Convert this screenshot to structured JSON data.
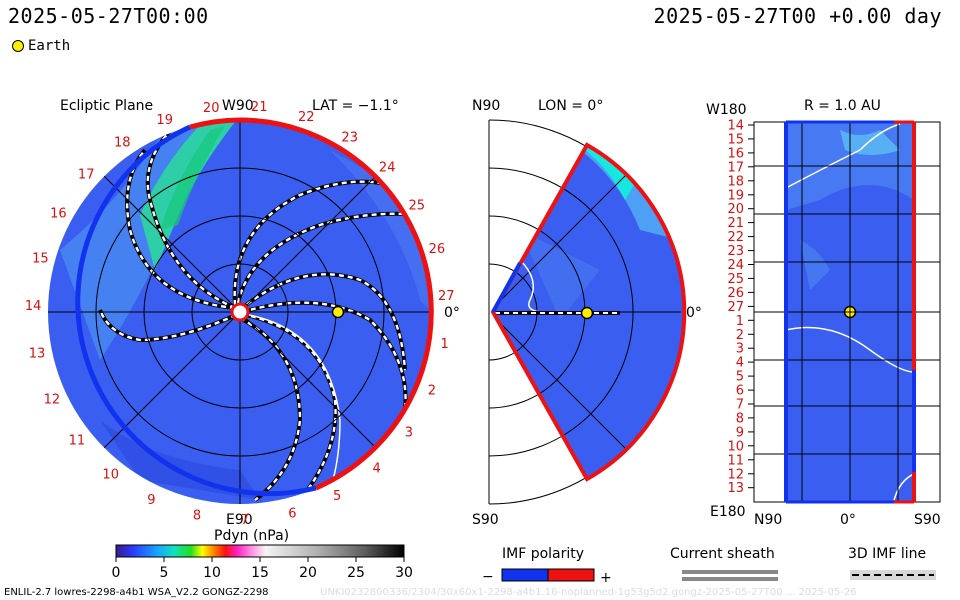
{
  "header": {
    "time_left": "2025-05-27T00:00",
    "time_right": "2025-05-27T00 +0.00 day"
  },
  "legend": {
    "earth": "Earth"
  },
  "ecliptic": {
    "title": "Ecliptic Plane",
    "lat": "LAT = −1.1°",
    "w90": "W90",
    "e90": "E90",
    "zero": "0°",
    "numbers": [
      "20",
      "21",
      "22",
      "23",
      "24",
      "25",
      "26",
      "27",
      "1",
      "2",
      "3",
      "4",
      "5",
      "6",
      "7",
      "8",
      "9",
      "10",
      "11",
      "12",
      "13",
      "14",
      "15",
      "16",
      "17",
      "18",
      "19"
    ]
  },
  "meridian": {
    "n90": "N90",
    "s90": "S90",
    "lon": "LON = 0°",
    "zero": "0°"
  },
  "radial": {
    "w180": "W180",
    "e180": "E180",
    "r": "R = 1.0 AU",
    "n90": "N90",
    "zero": "0°",
    "s90": "S90",
    "numbers": [
      "14",
      "15",
      "16",
      "17",
      "18",
      "19",
      "20",
      "21",
      "22",
      "23",
      "24",
      "25",
      "26",
      "27",
      "1",
      "2",
      "3",
      "4",
      "5",
      "6",
      "7",
      "8",
      "9",
      "10",
      "11",
      "12",
      "13"
    ]
  },
  "colorbar": {
    "label": "Pdyn (nPa)",
    "ticks": [
      "0",
      "5",
      "10",
      "15",
      "20",
      "25",
      "30"
    ]
  },
  "imf": {
    "label": "IMF polarity",
    "minus": "−",
    "plus": "+"
  },
  "sheath": {
    "label": "Current sheath"
  },
  "imf3d": {
    "label": "3D IMF line"
  },
  "footer": {
    "left": "ENLIL-2.7 lowres-2298-a4b1 WSA_V2.2 GONGZ-2298",
    "faint": "UNKI0232800336/2304/30x60x1-2298-a4b1.16-noplanned-1g53g5d2.gongz-2025-05-27T00 ... 2025-05-26"
  },
  "colors": {
    "rim_red": "#ee1111",
    "rim_blue": "#1133ee",
    "field": "#3a5ef0",
    "stream": "#22d8b0"
  }
}
